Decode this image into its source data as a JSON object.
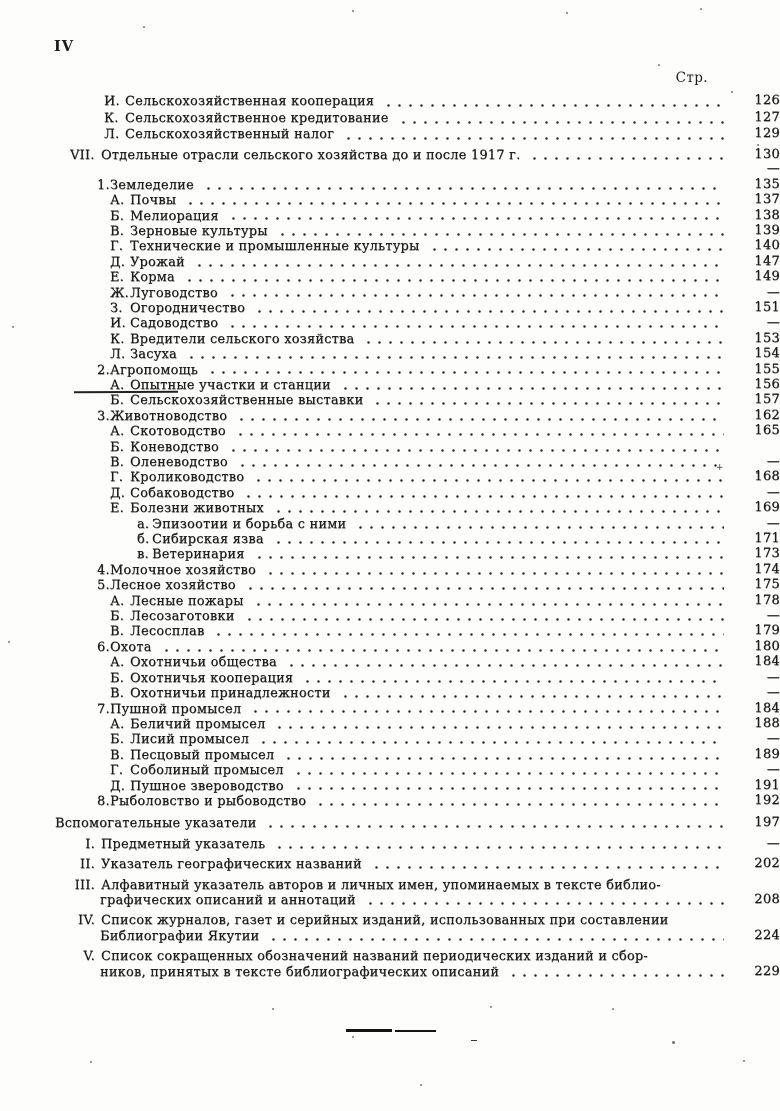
{
  "page": {
    "corner_label": "IV",
    "column_header": "Стр."
  },
  "colors": {
    "paper": "#fdfdfc",
    "ink": "#1c1c1c"
  },
  "toc": {
    "rows": [
      {
        "lv": "lt",
        "p": "И.",
        "t": "Сельскохозяйственная кооперация",
        "pg": "126"
      },
      {
        "lv": "lt",
        "p": "К.",
        "t": "Сельскохозяйственное кредитование",
        "pg": "127"
      },
      {
        "lv": "lt",
        "p": "Л.",
        "t": "Сельскохозяйственный налог",
        "pg": "129"
      },
      {
        "lv": "vii",
        "p": "VII.",
        "t": "Отдельные отрасли сельского хозяйства до и после 1917 г.",
        "pg": "130"
      },
      {
        "lv": "orphan",
        "p": "",
        "t": "",
        "pg": "—",
        "dots": false
      },
      {
        "lv": "num",
        "p": "1.",
        "t": "Земледелие",
        "pg": "135"
      },
      {
        "lv": "let",
        "p": "А.",
        "t": "Почвы",
        "pg": "137"
      },
      {
        "lv": "let",
        "p": "Б.",
        "t": "Мелиорация",
        "pg": "138"
      },
      {
        "lv": "let",
        "p": "В.",
        "t": "Зерновые культуры",
        "pg": "139"
      },
      {
        "lv": "let",
        "p": "Г.",
        "t": "Технические и промышленные культуры",
        "pg": "140"
      },
      {
        "lv": "let",
        "p": "Д.",
        "t": "Урожай",
        "pg": "147"
      },
      {
        "lv": "let",
        "p": "Е.",
        "t": "Корма",
        "pg": "149"
      },
      {
        "lv": "let",
        "p": "Ж.",
        "t": "Луговодство",
        "pg": "—"
      },
      {
        "lv": "let",
        "p": "З.",
        "t": "Огородничество",
        "pg": "151"
      },
      {
        "lv": "let",
        "p": "И.",
        "t": "Садоводство",
        "pg": "—"
      },
      {
        "lv": "let",
        "p": "К.",
        "t": "Вредители сельского хозяйства",
        "pg": "153"
      },
      {
        "lv": "let",
        "p": "Л.",
        "t": "Засуха",
        "pg": "154"
      },
      {
        "lv": "num",
        "p": "2.",
        "t": "Агропомощь",
        "pg": "155"
      },
      {
        "lv": "let",
        "p": "А.",
        "t": "Опытные участки и станции",
        "pg": "156",
        "artifact": true
      },
      {
        "lv": "let",
        "p": "Б.",
        "t": "Сельскохозяйственные выставки",
        "pg": "157"
      },
      {
        "lv": "num",
        "p": "3.",
        "t": "Животноводство",
        "pg": "162"
      },
      {
        "lv": "let",
        "p": "А.",
        "t": "Скотоводство",
        "pg": "165"
      },
      {
        "lv": "let",
        "p": "Б.",
        "t": "Коневодство",
        "pg": ""
      },
      {
        "lv": "let",
        "p": "В.",
        "t": "Оленеводство",
        "pg": "—"
      },
      {
        "lv": "let",
        "p": "Г.",
        "t": "Кролиководство",
        "pg": "168"
      },
      {
        "lv": "let",
        "p": "Д.",
        "t": "Собаководство",
        "pg": "—"
      },
      {
        "lv": "let",
        "p": "Е.",
        "t": "Болезни животных",
        "pg": "169"
      },
      {
        "lv": "sub",
        "p": "а.",
        "t": "Эпизоотии и борьба с ними",
        "pg": "—"
      },
      {
        "lv": "sub",
        "p": "б.",
        "t": "Сибирская язва",
        "pg": "171"
      },
      {
        "lv": "sub",
        "p": "в.",
        "t": "Ветеринария",
        "pg": "173"
      },
      {
        "lv": "num",
        "p": "4.",
        "t": "Молочное хозяйство",
        "pg": "174"
      },
      {
        "lv": "num",
        "p": "5.",
        "t": "Лесное хозяйство",
        "pg": "175"
      },
      {
        "lv": "let",
        "p": "А.",
        "t": "Лесные пожары",
        "pg": "178"
      },
      {
        "lv": "let",
        "p": "Б.",
        "t": "Лесозаготовки",
        "pg": "—"
      },
      {
        "lv": "let",
        "p": "В.",
        "t": "Лесосплав",
        "pg": "179"
      },
      {
        "lv": "num",
        "p": "6.",
        "t": "Охота",
        "pg": "180"
      },
      {
        "lv": "let",
        "p": "А.",
        "t": "Охотничьи общества",
        "pg": "184"
      },
      {
        "lv": "let",
        "p": "Б.",
        "t": "Охотничья кооперация",
        "pg": "—"
      },
      {
        "lv": "let",
        "p": "В.",
        "t": "Охотничьи принадлежности",
        "pg": "—"
      },
      {
        "lv": "num",
        "p": "7.",
        "t": "Пушной промысел",
        "pg": "184"
      },
      {
        "lv": "let",
        "p": "А.",
        "t": "Беличий промысел",
        "pg": "188"
      },
      {
        "lv": "let",
        "p": "Б.",
        "t": "Лисий промысел",
        "pg": "—"
      },
      {
        "lv": "let",
        "p": "В.",
        "t": "Песцовый промысел",
        "pg": "189"
      },
      {
        "lv": "let",
        "p": "Г.",
        "t": "Соболиный промысел",
        "pg": "—"
      },
      {
        "lv": "let",
        "p": "Д.",
        "t": "Пушное звероводство",
        "pg": "191"
      },
      {
        "lv": "num",
        "p": "8.",
        "t": "Рыболовство и рыбоводство",
        "pg": "192"
      },
      {
        "lv": "aux",
        "p": "",
        "t": "Вспомогательные указатели",
        "pg": "197"
      },
      {
        "lv": "rom",
        "p": "I.",
        "t": "Предметный указатель",
        "pg": "—"
      },
      {
        "lv": "rom",
        "p": "II.",
        "t": "Указатель географических названий",
        "pg": "202"
      },
      {
        "lv": "rom",
        "p": "III.",
        "t": "Алфавитный указатель авторов и личных имен, упоминаемых в тексте библио-",
        "pg": "",
        "dots": false
      },
      {
        "lv": "cont",
        "p": "",
        "t": "графических описаний и аннотаций",
        "pg": "208"
      },
      {
        "lv": "rom",
        "p": "IV.",
        "t": "Список журналов, газет и серийных изданий, использованных при составлении",
        "pg": "",
        "dots": false
      },
      {
        "lv": "cont",
        "p": "",
        "t": "Библиографии Якутии",
        "pg": "224"
      },
      {
        "lv": "rom",
        "p": "V.",
        "t": "Список сокращенных обозначений названий периодических изданий и сбор-",
        "pg": "",
        "dots": false
      },
      {
        "lv": "cont",
        "p": "",
        "t": "ников, принятых в тексте библиографических описаний",
        "pg": "229"
      }
    ]
  }
}
